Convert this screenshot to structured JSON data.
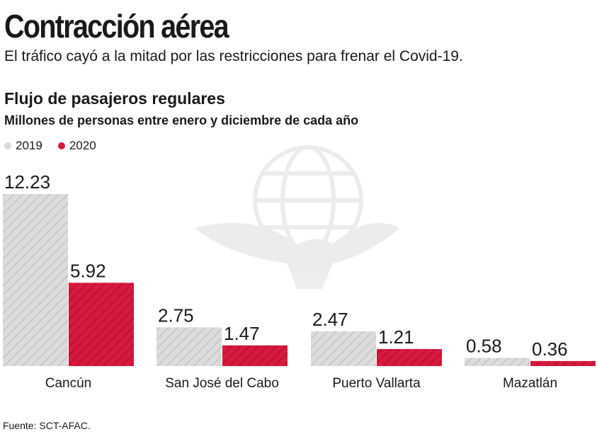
{
  "headline": "Contracción aérea",
  "subheadline": "El tráfico cayó a la mitad por las restricciones para frenar el Covid-19.",
  "source": "Fuente: SCT-AFAC.",
  "colors": {
    "series_2019": "#d9d9d9",
    "series_2020": "#d7193f",
    "text": "#1a1a1a"
  },
  "chart_data": {
    "type": "bar",
    "title": "Flujo de pasajeros regulares",
    "subtitle": "Millones de personas entre enero y diciembre de cada año",
    "categories": [
      "Cancún",
      "San José del Cabo",
      "Puerto Vallarta",
      "Mazatlán"
    ],
    "series": [
      {
        "name": "2019",
        "values": [
          12.23,
          2.75,
          2.47,
          0.58
        ],
        "value_labels": [
          "12.23",
          "2.75",
          "2.47",
          "0.58"
        ],
        "color": "#d9d9d9"
      },
      {
        "name": "2020",
        "values": [
          5.92,
          1.47,
          1.21,
          0.36
        ],
        "value_labels": [
          "5.92",
          "1.47",
          "1.21",
          "0.36"
        ],
        "color": "#d7193f"
      }
    ],
    "ylim": [
      0,
      12.23
    ],
    "grid": false,
    "legend": "top-left",
    "bar_fill": "diagonal-hatch",
    "axis_visible": false
  }
}
